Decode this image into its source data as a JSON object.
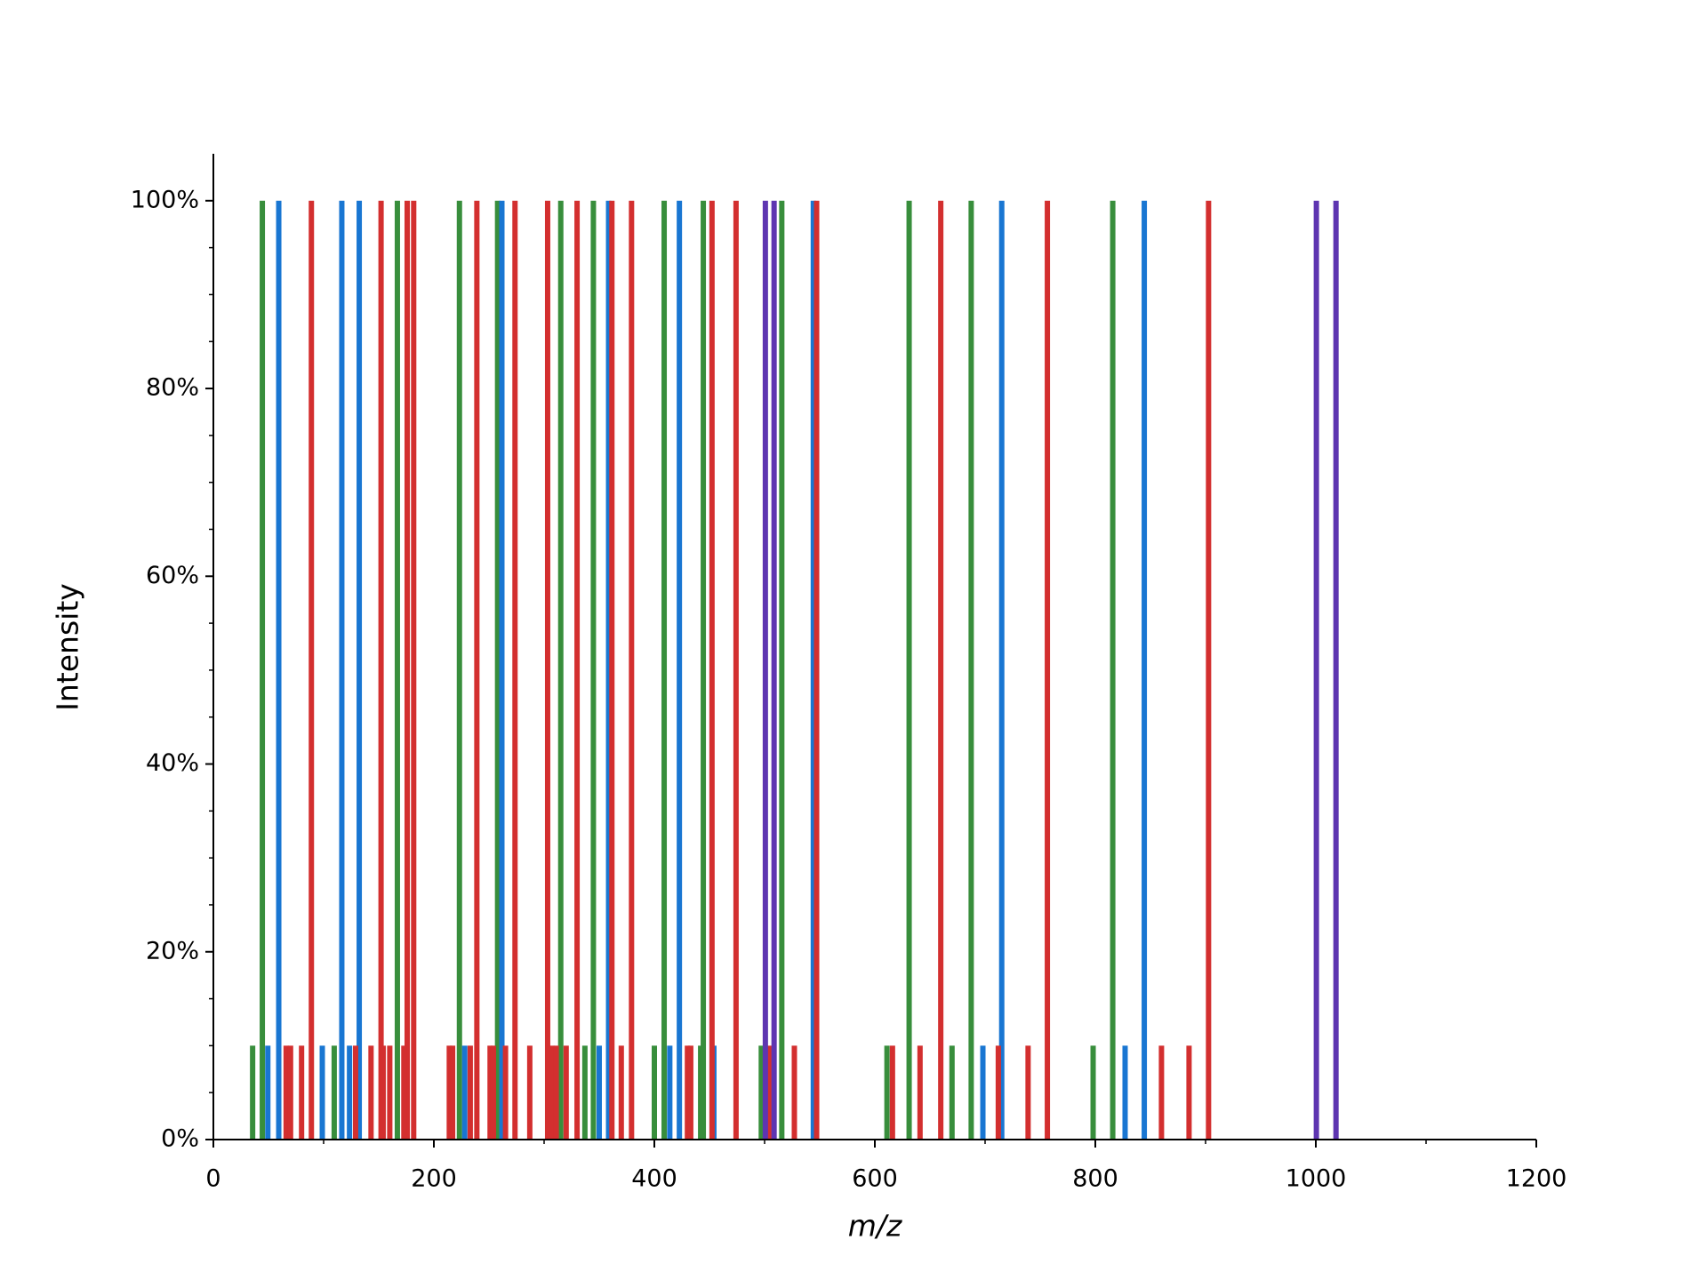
{
  "chart_data": {
    "type": "stem",
    "xlabel": "m/z",
    "ylabel": "Intensity",
    "xlim": [
      0,
      1200
    ],
    "ylim": [
      0,
      105
    ],
    "xticks": [
      0,
      200,
      400,
      600,
      800,
      1000,
      1200
    ],
    "yticks": [
      {
        "value": 0,
        "label": "0%"
      },
      {
        "value": 20,
        "label": "20%"
      },
      {
        "value": 40,
        "label": "40%"
      },
      {
        "value": 60,
        "label": "60%"
      },
      {
        "value": 80,
        "label": "80%"
      },
      {
        "value": 100,
        "label": "100%"
      }
    ],
    "grid": false,
    "series": [
      {
        "color": "#388e3c",
        "x": [
          44.4,
          166.9,
          223.2,
          257.8,
          315.1,
          344.7,
          408.9,
          444.4,
          515.6,
          631.1,
          687.4,
          815.8,
          35.6,
          109.6,
          337,
          400,
          442,
          497,
          611,
          670,
          798
        ],
        "values": [
          100,
          100,
          100,
          100,
          100,
          100,
          100,
          100,
          100,
          100,
          100,
          100,
          10,
          10,
          10,
          10,
          10,
          10,
          10,
          10,
          10
        ]
      },
      {
        "color": "#1976d2",
        "x": [
          59.3,
          116.5,
          132.3,
          261.7,
          358.5,
          422.7,
          544.2,
          715.1,
          844.4,
          49.4,
          98.8,
          123.5,
          228,
          350,
          414,
          454,
          698,
          827
        ],
        "values": [
          100,
          100,
          100,
          100,
          100,
          100,
          100,
          100,
          100,
          10,
          10,
          10,
          10,
          10,
          10,
          10,
          10,
          10
        ]
      },
      {
        "color": "#d32f2f",
        "x": [
          88.9,
          152.1,
          175.8,
          181.7,
          239.0,
          273.6,
          303.2,
          329.9,
          361.5,
          379.3,
          452.3,
          474.1,
          547.2,
          659.8,
          756.5,
          902.7,
          66,
          70,
          80,
          129,
          143,
          154,
          160,
          172.8,
          214,
          217,
          233,
          251,
          254,
          265,
          287,
          307,
          311,
          320,
          370,
          430,
          433,
          504,
          527,
          616,
          641,
          712,
          739,
          860,
          885
        ],
        "values": [
          100,
          100,
          100,
          100,
          100,
          100,
          100,
          100,
          100,
          100,
          100,
          100,
          100,
          100,
          100,
          100,
          10,
          10,
          10,
          10,
          10,
          10,
          10,
          10,
          10,
          10,
          10,
          10,
          10,
          10,
          10,
          10,
          10,
          10,
          10,
          10,
          10,
          10,
          10,
          10,
          10,
          10,
          10,
          10,
          10
        ]
      },
      {
        "color": "#5e35b1",
        "x": [
          500.7,
          508.6,
          1000.5,
          1018.3
        ],
        "values": [
          100,
          100,
          100,
          100
        ]
      }
    ]
  }
}
